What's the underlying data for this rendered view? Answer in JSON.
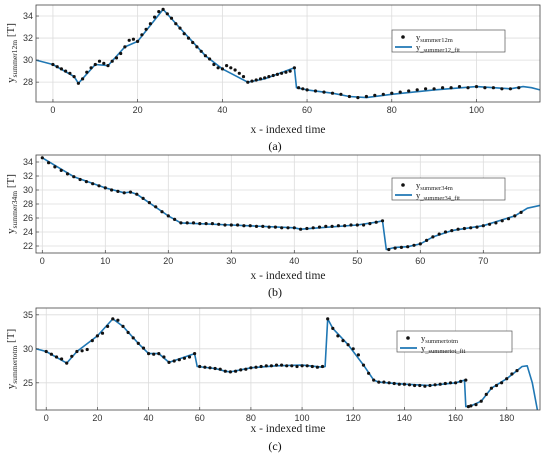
{
  "chart_data": [
    {
      "type": "line",
      "panel_label": "(a)",
      "xlabel": "x - indexed time",
      "ylabel": {
        "main": "y",
        "sub": "summer12m",
        "unit": "[T]"
      },
      "xlim": [
        -4,
        115
      ],
      "ylim": [
        26.2,
        35
      ],
      "xticks": [
        0,
        20,
        40,
        60,
        80,
        100
      ],
      "yticks": [
        28,
        30,
        32,
        34
      ],
      "grid": true,
      "legend": {
        "placement": "top-right"
      },
      "series": [
        {
          "name_main": "y",
          "name_sub": "summer12m",
          "style": "markers",
          "color": "#111111",
          "x": [
            0,
            1,
            2,
            3,
            4,
            5,
            6,
            7,
            8,
            9,
            10,
            11,
            12,
            13,
            14,
            15,
            16,
            17,
            18,
            19,
            20,
            21,
            22,
            23,
            24,
            25,
            26,
            27,
            28,
            29,
            30,
            31,
            32,
            33,
            34,
            35,
            36,
            37,
            38,
            39,
            40,
            41,
            42,
            43,
            44,
            45,
            46,
            47,
            48,
            49,
            50,
            51,
            52,
            53,
            54,
            55,
            56,
            57,
            58,
            59,
            60,
            62,
            64,
            66,
            68,
            70,
            72,
            74,
            76,
            78,
            80,
            82,
            84,
            86,
            88,
            90,
            92,
            94,
            96,
            98,
            100,
            102,
            104,
            106,
            108,
            110
          ],
          "y": [
            29.6,
            29.4,
            29.2,
            29.0,
            28.8,
            28.5,
            27.9,
            28.3,
            28.9,
            29.3,
            29.6,
            29.9,
            29.7,
            29.5,
            29.9,
            30.2,
            30.6,
            31.2,
            31.8,
            31.9,
            31.7,
            32.3,
            32.8,
            33.3,
            33.9,
            34.4,
            34.6,
            34.2,
            33.8,
            33.3,
            32.9,
            32.4,
            32.0,
            31.6,
            31.2,
            30.8,
            30.4,
            30.1,
            29.6,
            29.3,
            29.2,
            29.5,
            29.3,
            29.1,
            28.8,
            28.5,
            28.0,
            28.1,
            28.2,
            28.3,
            28.4,
            28.5,
            28.6,
            28.7,
            28.8,
            28.9,
            29.0,
            29.3,
            27.5,
            27.4,
            27.3,
            27.2,
            27.1,
            27.0,
            26.9,
            26.7,
            26.6,
            26.7,
            26.8,
            26.9,
            27.0,
            27.1,
            27.2,
            27.3,
            27.4,
            27.4,
            27.5,
            27.5,
            27.6,
            27.5,
            27.6,
            27.5,
            27.5,
            27.4,
            27.4,
            27.5
          ]
        },
        {
          "name_main": "y",
          "name_sub": "_summer12_fit",
          "style": "line",
          "color": "#1f77b4",
          "x": [
            -4,
            0,
            5,
            6,
            10,
            13,
            17,
            20,
            26,
            30,
            36,
            40,
            46,
            50,
            57,
            57.5,
            60,
            66,
            70,
            74,
            80,
            90,
            100,
            108,
            111,
            113,
            115
          ],
          "y": [
            30.0,
            29.6,
            28.5,
            27.9,
            29.6,
            29.5,
            31.2,
            31.7,
            34.6,
            32.9,
            30.4,
            29.2,
            28.0,
            28.3,
            29.3,
            27.5,
            27.3,
            27.0,
            26.7,
            26.6,
            26.9,
            27.3,
            27.6,
            27.4,
            27.6,
            27.5,
            27.3
          ]
        }
      ]
    },
    {
      "type": "line",
      "panel_label": "(b)",
      "xlabel": "x - indexed time",
      "ylabel": {
        "main": "y",
        "sub": "summer34m",
        "unit": "[T]"
      },
      "xlim": [
        -1,
        79
      ],
      "ylim": [
        21,
        35
      ],
      "xticks": [
        0,
        10,
        20,
        30,
        40,
        50,
        60,
        70
      ],
      "yticks": [
        22,
        24,
        26,
        28,
        30,
        32,
        34
      ],
      "grid": true,
      "legend": {
        "placement": "right"
      },
      "series": [
        {
          "name_main": "y",
          "name_sub": "summer34m",
          "style": "markers",
          "color": "#111111",
          "x": [
            0,
            1,
            2,
            3,
            4,
            5,
            6,
            7,
            8,
            9,
            10,
            11,
            12,
            13,
            14,
            15,
            16,
            17,
            18,
            19,
            20,
            21,
            22,
            23,
            24,
            25,
            26,
            27,
            28,
            29,
            30,
            31,
            32,
            33,
            34,
            35,
            36,
            37,
            38,
            39,
            40,
            41,
            42,
            43,
            44,
            45,
            46,
            47,
            48,
            49,
            50,
            51,
            52,
            53,
            54,
            55,
            56,
            57,
            58,
            59,
            60,
            61,
            62,
            63,
            64,
            65,
            66,
            67,
            68,
            69,
            70,
            71,
            72,
            73,
            74,
            75,
            76
          ],
          "y": [
            34.6,
            33.9,
            33.3,
            32.8,
            32.3,
            31.9,
            31.5,
            31.2,
            30.9,
            30.6,
            30.3,
            30.0,
            29.8,
            29.6,
            29.7,
            29.4,
            28.8,
            28.2,
            27.6,
            26.9,
            26.3,
            25.8,
            25.3,
            25.3,
            25.3,
            25.2,
            25.2,
            25.2,
            25.1,
            25.0,
            25.0,
            25.0,
            24.9,
            24.9,
            24.8,
            24.8,
            24.7,
            24.7,
            24.6,
            24.6,
            24.6,
            24.4,
            24.5,
            24.6,
            24.7,
            24.8,
            24.8,
            24.9,
            24.9,
            25.0,
            25.0,
            25.0,
            25.2,
            25.4,
            25.6,
            21.5,
            21.7,
            21.8,
            21.9,
            22.1,
            22.3,
            22.8,
            23.3,
            23.7,
            24.0,
            24.2,
            24.4,
            24.5,
            24.6,
            24.7,
            24.9,
            25.1,
            25.3,
            25.6,
            25.9,
            26.3,
            26.8
          ]
        },
        {
          "name_main": "y",
          "name_sub": "_summer34_fit",
          "style": "line",
          "color": "#1f77b4",
          "x": [
            0,
            5,
            10,
            13,
            14,
            15,
            20,
            22,
            30,
            40,
            41,
            50,
            53,
            54,
            54.6,
            56,
            58,
            60,
            62,
            65,
            70,
            75,
            77,
            79
          ],
          "y": [
            34.6,
            31.9,
            30.3,
            29.6,
            29.7,
            29.4,
            26.3,
            25.3,
            25.0,
            24.6,
            24.4,
            25.0,
            25.4,
            25.6,
            21.5,
            21.8,
            21.9,
            22.3,
            23.3,
            24.2,
            24.9,
            26.3,
            27.4,
            27.8
          ]
        }
      ]
    },
    {
      "type": "line",
      "panel_label": "(c)",
      "xlabel": "x - indexed time",
      "ylabel": {
        "main": "y",
        "sub": "summertotm",
        "unit": "[T]"
      },
      "xlim": [
        -4,
        193
      ],
      "ylim": [
        21,
        36
      ],
      "xticks": [
        0,
        20,
        40,
        60,
        80,
        100,
        120,
        140,
        160,
        180
      ],
      "yticks": [
        25,
        30,
        35
      ],
      "grid": true,
      "legend": {
        "placement": "top-right"
      },
      "series": [
        {
          "name_main": "y",
          "name_sub": "summertotm",
          "style": "markers",
          "color": "#111111",
          "x": [
            0,
            2,
            4,
            6,
            8,
            10,
            12,
            14,
            16,
            18,
            20,
            22,
            24,
            26,
            28,
            30,
            32,
            34,
            36,
            38,
            40,
            42,
            44,
            46,
            48,
            50,
            52,
            54,
            56,
            58,
            60,
            62,
            64,
            66,
            68,
            70,
            72,
            74,
            76,
            78,
            80,
            82,
            84,
            86,
            88,
            90,
            92,
            94,
            96,
            98,
            100,
            102,
            104,
            106,
            108,
            110,
            112,
            114,
            116,
            118,
            120,
            122,
            124,
            126,
            128,
            130,
            132,
            134,
            136,
            138,
            140,
            142,
            144,
            146,
            148,
            150,
            152,
            154,
            156,
            158,
            160,
            162,
            164,
            165,
            166,
            168,
            170,
            172,
            174,
            176,
            178,
            180,
            182,
            184
          ],
          "y": [
            29.6,
            29.2,
            28.8,
            28.5,
            27.9,
            28.9,
            29.6,
            29.7,
            29.9,
            31.2,
            31.9,
            32.3,
            33.3,
            34.4,
            34.2,
            33.3,
            32.4,
            31.6,
            30.8,
            30.1,
            29.3,
            29.2,
            29.3,
            28.8,
            28.0,
            28.2,
            28.4,
            28.6,
            28.8,
            29.3,
            27.4,
            27.3,
            27.2,
            27.1,
            27.0,
            26.7,
            26.6,
            26.7,
            26.9,
            27.0,
            27.2,
            27.3,
            27.4,
            27.5,
            27.5,
            27.6,
            27.6,
            27.5,
            27.5,
            27.4,
            27.5,
            27.5,
            27.4,
            27.3,
            27.4,
            34.4,
            33.0,
            31.9,
            31.2,
            30.6,
            30.0,
            29.1,
            27.6,
            26.4,
            25.4,
            25.1,
            25.1,
            25.0,
            24.9,
            24.8,
            24.8,
            24.7,
            24.6,
            24.6,
            24.5,
            24.6,
            24.7,
            24.8,
            24.9,
            25.0,
            25.0,
            25.2,
            25.4,
            21.5,
            21.6,
            21.8,
            22.3,
            23.3,
            24.2,
            24.6,
            25.0,
            25.6,
            26.3,
            26.8
          ]
        },
        {
          "name_main": "y",
          "name_sub": "_summertot_fit",
          "style": "line",
          "color": "#1f77b4",
          "x": [
            -4,
            0,
            8,
            12,
            20,
            26,
            30,
            36,
            40,
            44,
            48,
            58,
            59,
            66,
            70,
            72,
            80,
            90,
            100,
            108,
            109,
            110,
            112,
            118,
            124,
            128,
            130,
            140,
            150,
            160,
            163.5,
            164,
            166,
            170,
            174,
            180,
            184,
            186,
            188,
            190,
            192
          ],
          "y": [
            30.0,
            29.6,
            27.9,
            29.6,
            31.9,
            34.4,
            33.3,
            30.8,
            29.3,
            29.3,
            28.0,
            29.3,
            27.4,
            27.1,
            26.7,
            26.6,
            27.2,
            27.5,
            27.6,
            27.3,
            27.4,
            34.4,
            33.0,
            30.6,
            27.6,
            25.4,
            25.1,
            24.8,
            24.6,
            25.0,
            25.4,
            21.5,
            21.6,
            22.3,
            24.2,
            25.6,
            26.8,
            27.4,
            27.5,
            25.0,
            21.0
          ]
        }
      ]
    }
  ]
}
